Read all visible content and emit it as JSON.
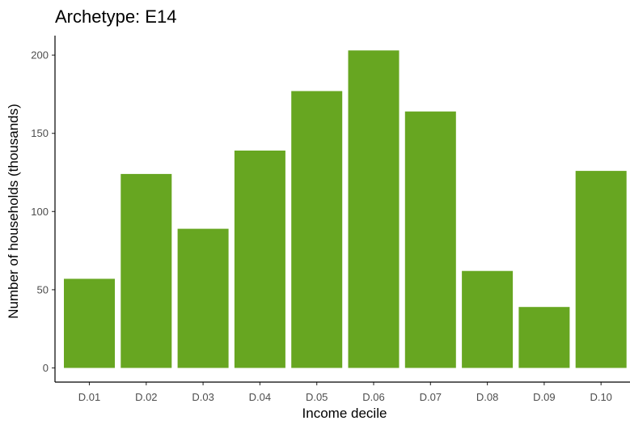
{
  "chart_data": {
    "type": "bar",
    "title": "Archetype: E14",
    "xlabel": "Income decile",
    "ylabel": "Number of households (thousands)",
    "categories": [
      "D.01",
      "D.02",
      "D.03",
      "D.04",
      "D.05",
      "D.06",
      "D.07",
      "D.08",
      "D.09",
      "D.10"
    ],
    "values": [
      57,
      124,
      89,
      139,
      177,
      203,
      164,
      62,
      39,
      126
    ],
    "yticks": [
      0,
      50,
      100,
      150,
      200
    ],
    "ylim": [
      -4,
      210
    ],
    "bar_color": "#67a621",
    "grid": false,
    "legend": "none"
  }
}
